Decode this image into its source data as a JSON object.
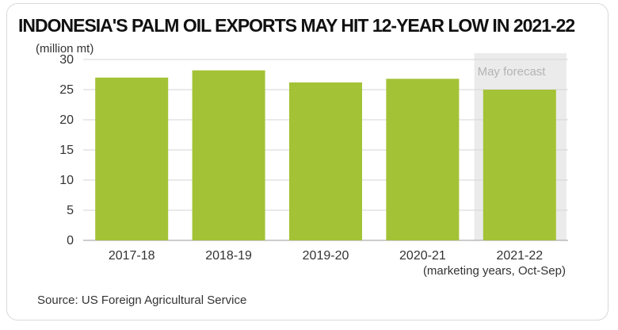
{
  "chart_data": {
    "type": "bar",
    "title": "INDONESIA'S PALM OIL EXPORTS MAY HIT 12-YEAR LOW IN 2021-22",
    "unit_label": "(million mt)",
    "categories": [
      "2017-18",
      "2018-19",
      "2019-20",
      "2020-21",
      "2021-22"
    ],
    "values": [
      27.0,
      28.2,
      26.2,
      26.8,
      25.0
    ],
    "ylim": [
      0,
      30
    ],
    "yticks": [
      "0",
      "5",
      "10",
      "15",
      "20",
      "25",
      "30"
    ],
    "ytick_values": [
      0,
      5,
      10,
      15,
      20,
      25,
      30
    ],
    "xlabel": "(marketing years, Oct-Sep)",
    "annotation": "May forecast",
    "annotation_category": "2021-22",
    "grid": true,
    "bar_color": "#a4c236",
    "highlight_color": "#ebebeb",
    "gridline_color": "#d6d6d6"
  },
  "source": "Source: US Foreign Agricultural Service"
}
